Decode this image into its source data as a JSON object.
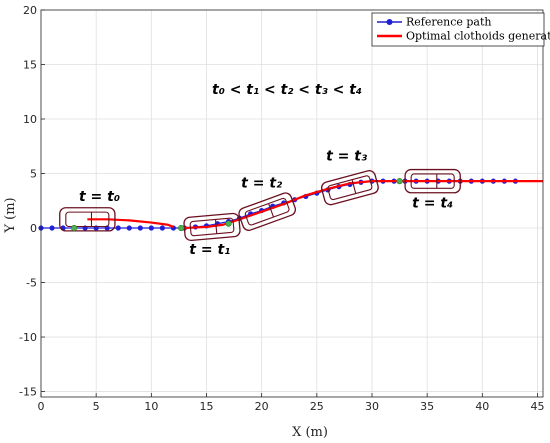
{
  "chart_data": {
    "type": "line",
    "xlabel": "X (m)",
    "ylabel": "Y (m)",
    "xlim": [
      0,
      45.5
    ],
    "ylim": [
      -15.5,
      20
    ],
    "x_ticks": [
      0,
      5,
      10,
      15,
      20,
      25,
      30,
      35,
      40,
      45
    ],
    "y_ticks": [
      -15,
      -10,
      -5,
      0,
      5,
      10,
      15,
      20
    ],
    "grid": true,
    "legend_position": "top-right",
    "series": [
      {
        "name": "Reference path",
        "color": "#1f1fd6",
        "marker": "circle",
        "points": [
          [
            0,
            0
          ],
          [
            1,
            0
          ],
          [
            2,
            0
          ],
          [
            3,
            0
          ],
          [
            4,
            0
          ],
          [
            5,
            0
          ],
          [
            6,
            0
          ],
          [
            7,
            0
          ],
          [
            8,
            0
          ],
          [
            9,
            0
          ],
          [
            10,
            0
          ],
          [
            11,
            0
          ],
          [
            12,
            0
          ],
          [
            13,
            0
          ],
          [
            14,
            0.1
          ],
          [
            15,
            0.2
          ],
          [
            16,
            0.4
          ],
          [
            17,
            0.6
          ],
          [
            18,
            0.9
          ],
          [
            19,
            1.3
          ],
          [
            20,
            1.6
          ],
          [
            21,
            2.0
          ],
          [
            22,
            2.3
          ],
          [
            23,
            2.6
          ],
          [
            24,
            2.9
          ],
          [
            25,
            3.2
          ],
          [
            26,
            3.5
          ],
          [
            27,
            3.8
          ],
          [
            28,
            4.0
          ],
          [
            29,
            4.2
          ],
          [
            30,
            4.3
          ],
          [
            31,
            4.3
          ],
          [
            32,
            4.3
          ],
          [
            33,
            4.3
          ],
          [
            34,
            4.3
          ],
          [
            35,
            4.3
          ],
          [
            36,
            4.3
          ],
          [
            37,
            4.3
          ],
          [
            38,
            4.3
          ],
          [
            39,
            4.3
          ],
          [
            40,
            4.3
          ],
          [
            41,
            4.3
          ],
          [
            42,
            4.3
          ],
          [
            43,
            4.3
          ]
        ]
      },
      {
        "name": "Optimal clothoids generated",
        "color": "#ff0000",
        "segments": [
          [
            [
              4.2,
              0.8
            ],
            [
              6,
              0.8
            ],
            [
              8,
              0.7
            ],
            [
              10,
              0.5
            ],
            [
              11.5,
              0.3
            ],
            [
              12,
              0.1
            ]
          ],
          [
            [
              13,
              0
            ],
            [
              15,
              0.1
            ],
            [
              16.5,
              0.3
            ],
            [
              18,
              0.8
            ],
            [
              20,
              1.5
            ],
            [
              22,
              2.2
            ],
            [
              24,
              3.0
            ],
            [
              26,
              3.6
            ],
            [
              28,
              4.1
            ],
            [
              30,
              4.3
            ],
            [
              32,
              4.3
            ],
            [
              34,
              4.3
            ],
            [
              37,
              4.3
            ],
            [
              40,
              4.3
            ],
            [
              43,
              4.3
            ],
            [
              45.5,
              4.3
            ]
          ]
        ]
      }
    ],
    "annotations": [
      {
        "text": "t₀ < t₁ <  t₂ < t₃ <  t₄",
        "x": 15.5,
        "y": 12.3
      },
      {
        "text": "t = t₀",
        "x": 5.3,
        "y": 2.5
      },
      {
        "text": "t = t₁",
        "x": 15.3,
        "y": -2.4
      },
      {
        "text": "t = t₂",
        "x": 20.0,
        "y": 3.7
      },
      {
        "text": "t = t₃",
        "x": 27.7,
        "y": 6.2
      },
      {
        "text": "t = t₄",
        "x": 35.5,
        "y": 1.9
      }
    ]
  },
  "vehicles": [
    {
      "label": "vehicle-t0",
      "x": 4.2,
      "y": 0.8,
      "heading_deg": 0
    },
    {
      "label": "vehicle-t1",
      "x": 15.5,
      "y": 0.1,
      "heading_deg": 5
    },
    {
      "label": "vehicle-t2",
      "x": 20.5,
      "y": 1.5,
      "heading_deg": 20
    },
    {
      "label": "vehicle-t3",
      "x": 28.0,
      "y": 3.7,
      "heading_deg": 15
    },
    {
      "label": "vehicle-t4",
      "x": 35.5,
      "y": 4.3,
      "heading_deg": 0
    }
  ],
  "transition_markers": [
    {
      "x": 3,
      "y": 0,
      "color": "#4caf50"
    },
    {
      "x": 12.7,
      "y": 0,
      "color": "#4caf50"
    },
    {
      "x": 17,
      "y": 0.4,
      "color": "#4caf50"
    },
    {
      "x": 32.5,
      "y": 4.3,
      "color": "#4caf50"
    }
  ],
  "legend": {
    "items": [
      {
        "label": "Reference path"
      },
      {
        "label": "Optimal clothoids generated"
      }
    ]
  }
}
